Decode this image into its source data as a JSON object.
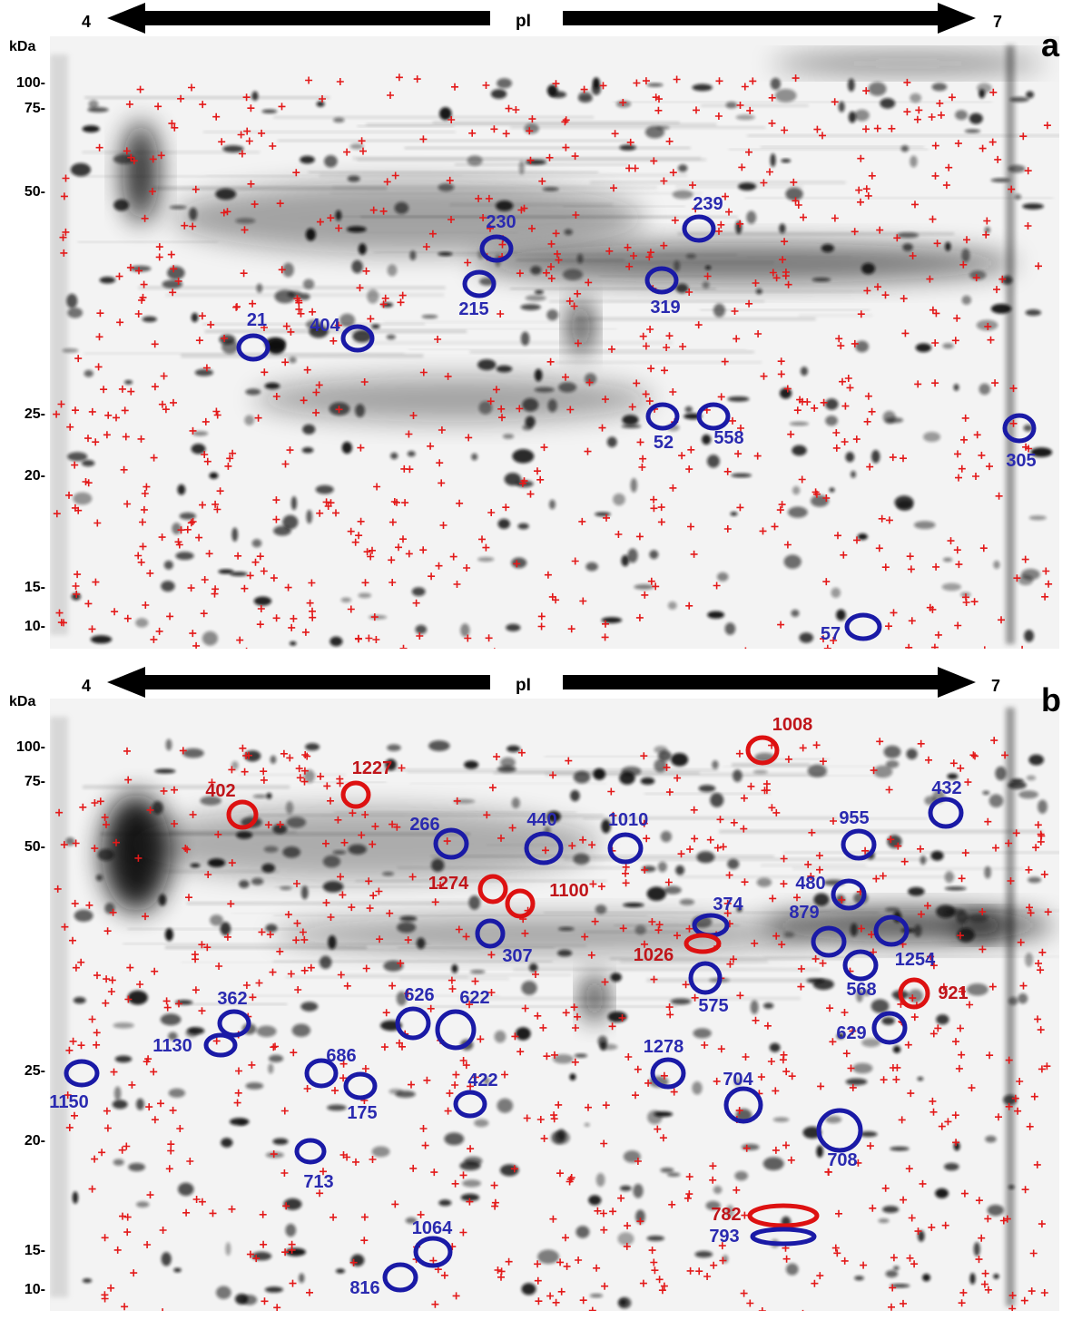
{
  "colors": {
    "blue_circle": "#1a1aa6",
    "red_circle": "#dd1111",
    "plus": "#e31a1a",
    "blue_text": "#2a2ab0",
    "red_text": "#c0151a"
  },
  "panels": [
    {
      "id": "a",
      "letter": "a",
      "axis": {
        "ph_left": "4",
        "ph_label": "pI",
        "ph_right": "7",
        "mw_unit": "kDa"
      },
      "mw_markers": [
        "100-",
        "75-",
        "50-",
        "25-",
        "20-",
        "15-",
        "10-"
      ],
      "spots": [
        {
          "label": "21",
          "color": "blue"
        },
        {
          "label": "404",
          "color": "blue"
        },
        {
          "label": "230",
          "color": "blue"
        },
        {
          "label": "215",
          "color": "blue"
        },
        {
          "label": "239",
          "color": "blue"
        },
        {
          "label": "319",
          "color": "blue"
        },
        {
          "label": "52",
          "color": "blue"
        },
        {
          "label": "558",
          "color": "blue"
        },
        {
          "label": "305",
          "color": "blue"
        },
        {
          "label": "57",
          "color": "blue"
        }
      ]
    },
    {
      "id": "b",
      "letter": "b",
      "axis": {
        "ph_left": "4",
        "ph_label": "pI",
        "ph_right": "7",
        "mw_unit": "kDa"
      },
      "mw_markers": [
        "100-",
        "75-",
        "50-",
        "25-",
        "20-",
        "15-",
        "10-"
      ],
      "spots": [
        {
          "label": "1008",
          "color": "red"
        },
        {
          "label": "1227",
          "color": "red"
        },
        {
          "label": "402",
          "color": "red"
        },
        {
          "label": "432",
          "color": "blue"
        },
        {
          "label": "266",
          "color": "blue"
        },
        {
          "label": "440",
          "color": "blue"
        },
        {
          "label": "1010",
          "color": "blue"
        },
        {
          "label": "955",
          "color": "blue"
        },
        {
          "label": "1274",
          "color": "red"
        },
        {
          "label": "1100",
          "color": "red"
        },
        {
          "label": "480",
          "color": "blue"
        },
        {
          "label": "374",
          "color": "blue"
        },
        {
          "label": "879",
          "color": "blue"
        },
        {
          "label": "307",
          "color": "blue"
        },
        {
          "label": "1026",
          "color": "red"
        },
        {
          "label": "1254",
          "color": "blue"
        },
        {
          "label": "568",
          "color": "blue"
        },
        {
          "label": "921",
          "color": "red"
        },
        {
          "label": "575",
          "color": "blue"
        },
        {
          "label": "362",
          "color": "blue"
        },
        {
          "label": "626",
          "color": "blue"
        },
        {
          "label": "622",
          "color": "blue"
        },
        {
          "label": "629",
          "color": "blue"
        },
        {
          "label": "1130",
          "color": "blue"
        },
        {
          "label": "1278",
          "color": "blue"
        },
        {
          "label": "686",
          "color": "blue"
        },
        {
          "label": "1150",
          "color": "blue"
        },
        {
          "label": "175",
          "color": "blue"
        },
        {
          "label": "422",
          "color": "blue"
        },
        {
          "label": "704",
          "color": "blue"
        },
        {
          "label": "708",
          "color": "blue"
        },
        {
          "label": "713",
          "color": "blue"
        },
        {
          "label": "782",
          "color": "red"
        },
        {
          "label": "793",
          "color": "blue"
        },
        {
          "label": "1064",
          "color": "blue"
        },
        {
          "label": "816",
          "color": "blue"
        }
      ]
    }
  ]
}
